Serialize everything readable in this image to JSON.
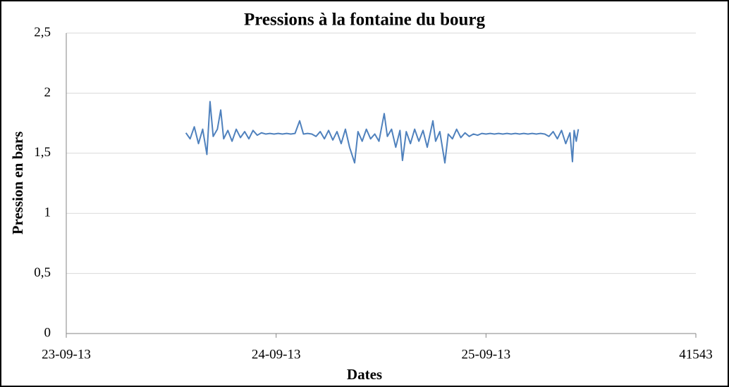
{
  "chart_data": {
    "type": "line",
    "title": "Pressions à la fontaine du bourg",
    "x_label": "Dates",
    "y_label": "Pression en bars",
    "xlim": [
      41540,
      41543
    ],
    "xticks": [
      {
        "value": 41540,
        "label": "23-09-13"
      },
      {
        "value": 41541,
        "label": "24-09-13"
      },
      {
        "value": 41542,
        "label": "25-09-13"
      },
      41543
    ],
    "ylim": [
      0,
      2.5
    ],
    "yticks": [
      0,
      {
        "value": 0.5,
        "label": "0,5"
      },
      1,
      {
        "value": 1.5,
        "label": "1,5"
      },
      2,
      {
        "value": 2.5,
        "label": "2,5"
      }
    ],
    "grid": true,
    "x": [
      41540.57,
      41540.59,
      41540.61,
      41540.63,
      41540.65,
      41540.67,
      41540.685,
      41540.7,
      41540.72,
      41540.736,
      41540.75,
      41540.77,
      41540.79,
      41540.81,
      41540.83,
      41540.85,
      41540.87,
      41540.89,
      41540.91,
      41540.93,
      41540.95,
      41540.97,
      41540.99,
      41541.01,
      41541.03,
      41541.05,
      41541.07,
      41541.09,
      41541.112,
      41541.13,
      41541.15,
      41541.17,
      41541.19,
      41541.21,
      41541.23,
      41541.25,
      41541.27,
      41541.29,
      41541.31,
      41541.33,
      41541.35,
      41541.374,
      41541.39,
      41541.41,
      41541.43,
      41541.45,
      41541.47,
      41541.49,
      41541.515,
      41541.53,
      41541.55,
      41541.57,
      41541.59,
      41541.602,
      41541.62,
      41541.64,
      41541.66,
      41541.68,
      41541.7,
      41541.72,
      41541.747,
      41541.76,
      41541.78,
      41541.804,
      41541.82,
      41541.84,
      41541.86,
      41541.88,
      41541.9,
      41541.92,
      41541.94,
      41541.96,
      41541.98,
      41542.0,
      41542.02,
      41542.04,
      41542.06,
      41542.08,
      41542.1,
      41542.12,
      41542.14,
      41542.16,
      41542.18,
      41542.2,
      41542.22,
      41542.24,
      41542.26,
      41542.28,
      41542.3,
      41542.32,
      41542.34,
      41542.36,
      41542.38,
      41542.4,
      41542.412,
      41542.42,
      41542.43,
      41542.44
    ],
    "series": [
      {
        "color": "#4f81bd",
        "values": [
          1.67,
          1.62,
          1.72,
          1.58,
          1.7,
          1.49,
          1.93,
          1.64,
          1.7,
          1.86,
          1.62,
          1.69,
          1.6,
          1.7,
          1.63,
          1.68,
          1.62,
          1.69,
          1.65,
          1.67,
          1.66,
          1.665,
          1.66,
          1.665,
          1.66,
          1.665,
          1.66,
          1.665,
          1.77,
          1.66,
          1.665,
          1.66,
          1.64,
          1.68,
          1.62,
          1.69,
          1.61,
          1.68,
          1.58,
          1.7,
          1.55,
          1.42,
          1.68,
          1.6,
          1.7,
          1.62,
          1.66,
          1.6,
          1.83,
          1.64,
          1.7,
          1.55,
          1.69,
          1.44,
          1.68,
          1.58,
          1.7,
          1.6,
          1.69,
          1.55,
          1.77,
          1.6,
          1.68,
          1.42,
          1.66,
          1.62,
          1.7,
          1.63,
          1.67,
          1.64,
          1.66,
          1.65,
          1.665,
          1.66,
          1.665,
          1.66,
          1.665,
          1.66,
          1.665,
          1.66,
          1.665,
          1.66,
          1.665,
          1.66,
          1.665,
          1.66,
          1.665,
          1.66,
          1.64,
          1.68,
          1.62,
          1.69,
          1.58,
          1.67,
          1.43,
          1.69,
          1.6,
          1.7
        ]
      }
    ]
  }
}
